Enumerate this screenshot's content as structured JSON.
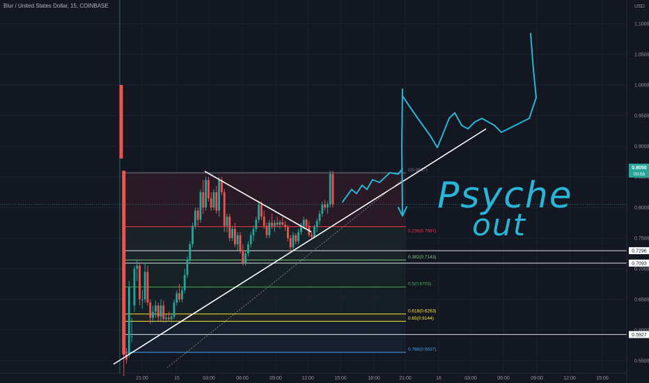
{
  "header": {
    "title": "Blur / United States Dollar, 15, COINBASE"
  },
  "colors": {
    "background": "#131722",
    "up": "#26a69a",
    "down": "#ef5350",
    "annotation": "#29b6d6",
    "trendline": "#ffffff"
  },
  "chart_data": {
    "type": "candlestick",
    "currency_label": "USD",
    "y_ticks": [
      "1.1000",
      "1.0500",
      "1.0000",
      "0.9500",
      "0.9000",
      "0.8500",
      "0.8000",
      "0.7500",
      "0.7000",
      "0.6500",
      "0.6000",
      "0.5500"
    ],
    "x_ticks": [
      "21:00",
      "15",
      "03:00",
      "06:00",
      "09:00",
      "12:00",
      "15:00",
      "18:00",
      "21:00",
      "16",
      "03:00",
      "06:00",
      "09:00",
      "12:00",
      "15:00"
    ],
    "ylim": [
      0.543,
      1.118
    ],
    "last_price": {
      "value": "0.8050",
      "countdown": "00:56"
    },
    "horizontal_levels": [
      "0.7296",
      "0.7093",
      "0.5927"
    ],
    "fib_levels": [
      {
        "label": "0(0.8567)",
        "price": 0.8567,
        "color": "#787b86"
      },
      {
        "label": "0.236(0.7687)",
        "price": 0.7687,
        "color": "#f23645"
      },
      {
        "label": "0.382(0.7143)",
        "price": 0.7143,
        "color": "#81c784"
      },
      {
        "label": "0.5(0.6703)",
        "price": 0.6703,
        "color": "#4caf50"
      },
      {
        "label": "0.618(0.6263)",
        "price": 0.6263,
        "color": "#ffeb3b"
      },
      {
        "label": "0.65(0.6144)",
        "price": 0.6144,
        "color": "#ffeb3b"
      },
      {
        "label": "0.786(0.5637)",
        "price": 0.5637,
        "color": "#42a5f5"
      }
    ],
    "candles": [
      [
        1.0,
        1.0,
        0.88,
        0.88
      ],
      [
        0.86,
        0.86,
        0.525,
        0.56
      ],
      [
        0.56,
        0.57,
        0.545,
        0.552
      ],
      [
        0.56,
        0.68,
        0.555,
        0.67
      ],
      [
        0.59,
        0.62,
        0.58,
        0.59
      ],
      [
        0.64,
        0.705,
        0.63,
        0.7
      ],
      [
        0.7,
        0.715,
        0.68,
        0.705
      ],
      [
        0.705,
        0.708,
        0.64,
        0.65
      ],
      [
        0.65,
        0.665,
        0.635,
        0.65
      ],
      [
        0.65,
        0.71,
        0.645,
        0.695
      ],
      [
        0.695,
        0.705,
        0.64,
        0.645
      ],
      [
        0.645,
        0.65,
        0.61,
        0.62
      ],
      [
        0.62,
        0.64,
        0.612,
        0.63
      ],
      [
        0.63,
        0.648,
        0.62,
        0.64
      ],
      [
        0.64,
        0.645,
        0.615,
        0.622
      ],
      [
        0.622,
        0.65,
        0.615,
        0.64
      ],
      [
        0.64,
        0.648,
        0.612,
        0.618
      ],
      [
        0.618,
        0.625,
        0.612,
        0.62
      ],
      [
        0.62,
        0.63,
        0.614,
        0.618
      ],
      [
        0.618,
        0.628,
        0.612,
        0.622
      ],
      [
        0.622,
        0.65,
        0.618,
        0.645
      ],
      [
        0.645,
        0.665,
        0.64,
        0.66
      ],
      [
        0.66,
        0.675,
        0.645,
        0.65
      ],
      [
        0.65,
        0.67,
        0.645,
        0.665
      ],
      [
        0.665,
        0.7,
        0.66,
        0.69
      ],
      [
        0.69,
        0.72,
        0.685,
        0.715
      ],
      [
        0.715,
        0.745,
        0.71,
        0.74
      ],
      [
        0.74,
        0.775,
        0.735,
        0.77
      ],
      [
        0.77,
        0.8,
        0.765,
        0.795
      ],
      [
        0.795,
        0.8,
        0.77,
        0.78
      ],
      [
        0.78,
        0.83,
        0.775,
        0.825
      ],
      [
        0.825,
        0.845,
        0.79,
        0.8
      ],
      [
        0.8,
        0.85,
        0.795,
        0.845
      ],
      [
        0.845,
        0.85,
        0.81,
        0.815
      ],
      [
        0.815,
        0.825,
        0.795,
        0.8
      ],
      [
        0.8,
        0.83,
        0.795,
        0.825
      ],
      [
        0.825,
        0.835,
        0.79,
        0.795
      ],
      [
        0.795,
        0.85,
        0.785,
        0.845
      ],
      [
        0.845,
        0.85,
        0.82,
        0.825
      ],
      [
        0.825,
        0.83,
        0.76,
        0.77
      ],
      [
        0.77,
        0.79,
        0.76,
        0.785
      ],
      [
        0.785,
        0.79,
        0.745,
        0.75
      ],
      [
        0.75,
        0.77,
        0.745,
        0.765
      ],
      [
        0.765,
        0.775,
        0.735,
        0.74
      ],
      [
        0.74,
        0.76,
        0.73,
        0.755
      ],
      [
        0.755,
        0.76,
        0.725,
        0.73
      ],
      [
        0.73,
        0.74,
        0.705,
        0.71
      ],
      [
        0.71,
        0.73,
        0.705,
        0.725
      ],
      [
        0.725,
        0.745,
        0.72,
        0.74
      ],
      [
        0.74,
        0.76,
        0.735,
        0.755
      ],
      [
        0.755,
        0.77,
        0.745,
        0.765
      ],
      [
        0.765,
        0.785,
        0.76,
        0.78
      ],
      [
        0.78,
        0.81,
        0.775,
        0.805
      ],
      [
        0.805,
        0.81,
        0.78,
        0.785
      ],
      [
        0.785,
        0.795,
        0.765,
        0.77
      ],
      [
        0.77,
        0.775,
        0.75,
        0.755
      ],
      [
        0.755,
        0.78,
        0.75,
        0.775
      ],
      [
        0.775,
        0.79,
        0.765,
        0.77
      ],
      [
        0.77,
        0.78,
        0.76,
        0.775
      ],
      [
        0.775,
        0.785,
        0.768,
        0.772
      ],
      [
        0.772,
        0.78,
        0.765,
        0.776
      ],
      [
        0.776,
        0.785,
        0.77,
        0.772
      ],
      [
        0.772,
        0.778,
        0.762,
        0.768
      ],
      [
        0.768,
        0.772,
        0.745,
        0.75
      ],
      [
        0.75,
        0.755,
        0.728,
        0.735
      ],
      [
        0.735,
        0.76,
        0.73,
        0.755
      ],
      [
        0.755,
        0.758,
        0.74,
        0.745
      ],
      [
        0.745,
        0.765,
        0.74,
        0.76
      ],
      [
        0.76,
        0.775,
        0.755,
        0.77
      ],
      [
        0.77,
        0.785,
        0.765,
        0.78
      ],
      [
        0.78,
        0.782,
        0.765,
        0.77
      ],
      [
        0.77,
        0.778,
        0.752,
        0.755
      ],
      [
        0.755,
        0.76,
        0.748,
        0.752
      ],
      [
        0.752,
        0.772,
        0.75,
        0.768
      ],
      [
        0.768,
        0.782,
        0.76,
        0.778
      ],
      [
        0.778,
        0.795,
        0.772,
        0.79
      ],
      [
        0.79,
        0.81,
        0.785,
        0.805
      ],
      [
        0.805,
        0.812,
        0.795,
        0.8
      ],
      [
        0.8,
        0.81,
        0.79,
        0.805
      ],
      [
        0.805,
        0.86,
        0.8,
        0.855
      ],
      [
        0.855,
        0.86,
        0.8,
        0.805
      ]
    ]
  },
  "annotations": {
    "handwriting_lines": [
      "Psyche",
      "out"
    ]
  }
}
